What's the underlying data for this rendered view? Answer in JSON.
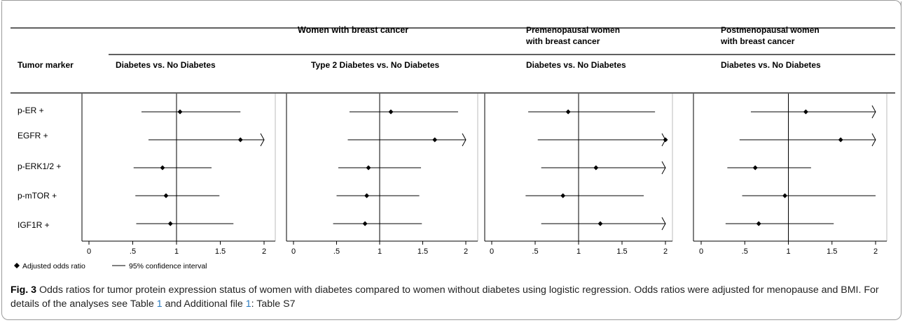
{
  "header": {
    "group1": "Women with breast cancer",
    "group2_line1": "Premenopausal women",
    "group2_line2": "with breast cancer",
    "group3_line1": "Postmenopausal women",
    "group3_line2": "with breast cancer",
    "row_label": "Tumor marker"
  },
  "chart_data": [
    {
      "type": "scatter",
      "panel": "Diabetes vs. No Diabetes",
      "group": "Women with breast cancer",
      "categories": [
        "p-ER +",
        "EGFR +",
        "p-ERK1/2 +",
        "p-mTOR +",
        "IGF1R +"
      ],
      "x": [
        1.04,
        1.73,
        0.84,
        0.88,
        0.93
      ],
      "ci_low": [
        0.6,
        0.68,
        0.51,
        0.53,
        0.54
      ],
      "ci_high": [
        1.73,
        2.0,
        1.4,
        1.49,
        1.65
      ],
      "ci_truncated": [
        false,
        true,
        false,
        false,
        false
      ],
      "xlim": [
        0,
        2
      ],
      "xticks": [
        "0",
        ".5",
        "1",
        "1.5",
        "2"
      ],
      "reference_line": 1
    },
    {
      "type": "scatter",
      "panel": "Type 2 Diabetes vs. No Diabetes",
      "group": "Women with breast cancer",
      "categories": [
        "p-ER +",
        "EGFR +",
        "p-ERK1/2 +",
        "p-mTOR +",
        "IGF1R +"
      ],
      "x": [
        1.13,
        1.64,
        0.87,
        0.85,
        0.83
      ],
      "ci_low": [
        0.65,
        0.63,
        0.52,
        0.5,
        0.46
      ],
      "ci_high": [
        1.91,
        2.0,
        1.48,
        1.46,
        1.49
      ],
      "ci_truncated": [
        false,
        true,
        false,
        false,
        false
      ],
      "xlim": [
        0,
        2
      ],
      "xticks": [
        "0",
        ".5",
        "1",
        "1.5",
        "2"
      ],
      "reference_line": 1
    },
    {
      "type": "scatter",
      "panel": "Diabetes vs. No Diabetes",
      "group": "Premenopausal women with breast cancer",
      "categories": [
        "p-ER +",
        "EGFR +",
        "p-ERK1/2 +",
        "p-mTOR +",
        "IGF1R +"
      ],
      "x": [
        0.88,
        2.0,
        1.2,
        0.82,
        1.25
      ],
      "ci_low": [
        0.42,
        0.53,
        0.57,
        0.39,
        0.57
      ],
      "ci_high": [
        1.88,
        2.0,
        2.0,
        1.75,
        2.0
      ],
      "ci_truncated": [
        false,
        true,
        true,
        false,
        true
      ],
      "xlim": [
        0,
        2
      ],
      "xticks": [
        "0",
        ".5",
        "1",
        "1.5",
        "2"
      ],
      "reference_line": 1
    },
    {
      "type": "scatter",
      "panel": "Diabetes vs. No Diabetes",
      "group": "Postmenopausal women with breast cancer",
      "categories": [
        "p-ER +",
        "EGFR +",
        "p-ERK1/2 +",
        "p-mTOR +",
        "IGF1R +"
      ],
      "x": [
        1.2,
        1.6,
        0.62,
        0.96,
        0.66
      ],
      "ci_low": [
        0.57,
        0.44,
        0.3,
        0.47,
        0.28
      ],
      "ci_high": [
        2.0,
        2.0,
        1.26,
        2.0,
        1.52
      ],
      "ci_truncated": [
        true,
        true,
        false,
        false,
        false
      ],
      "xlim": [
        0,
        2
      ],
      "xticks": [
        "0",
        ".5",
        "1",
        "1.5",
        "2"
      ],
      "reference_line": 1
    }
  ],
  "legend": {
    "marker_label": "Adjusted odds ratio",
    "line_label": "95% confidence interval"
  },
  "caption": {
    "fig_label": "Fig. 3",
    "text1": " Odds ratios for tumor protein expression status of women with diabetes compared to women without diabetes using logistic regression. Odds ratios were adjusted for menopause and BMI. For details of the analyses see Table ",
    "ref1": "1",
    "text2": " and Additional file ",
    "ref2": "1",
    "text3": ": Table S7"
  }
}
